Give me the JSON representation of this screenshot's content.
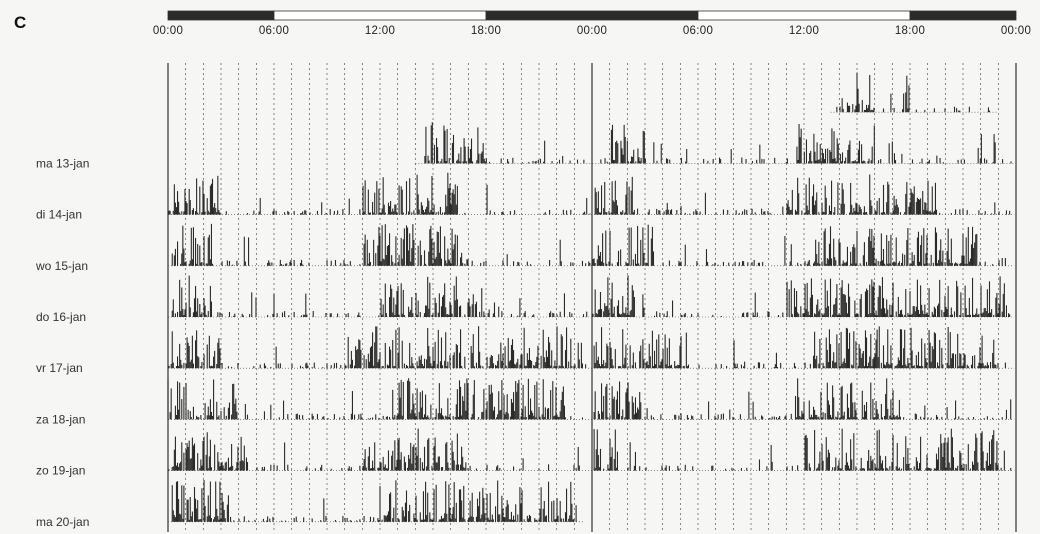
{
  "panel_label": "C",
  "chart_data": {
    "type": "bar",
    "title": "",
    "xlabel": "",
    "ylabel": "",
    "x_axis": {
      "range_hours": [
        0,
        48
      ],
      "tick_hours": [
        0,
        6,
        12,
        18,
        24,
        30,
        36,
        42,
        48
      ],
      "tick_labels": [
        "00:00",
        "06:00",
        "12:00",
        "18:00",
        "00:00",
        "06:00",
        "12:00",
        "18:00",
        "00:00"
      ],
      "minor_grid_step_hours": 1,
      "grid": "dotted"
    },
    "light_dark_bar": [
      {
        "start_hour": 0,
        "end_hour": 6,
        "state": "dark"
      },
      {
        "start_hour": 6,
        "end_hour": 18,
        "state": "light"
      },
      {
        "start_hour": 18,
        "end_hour": 30,
        "state": "dark"
      },
      {
        "start_hour": 30,
        "end_hour": 42,
        "state": "light"
      },
      {
        "start_hour": 42,
        "end_hour": 48,
        "state": "dark"
      }
    ],
    "rows": [
      {
        "label": "",
        "active_hours": [
          37.5,
          47.0
        ],
        "bursts": [
          [
            38.0,
            40.0
          ],
          [
            41.5,
            42.0
          ]
        ]
      },
      {
        "label": "ma 13-jan",
        "active_hours": [
          14.0,
          47.9
        ],
        "bursts": [
          [
            14.5,
            18.0
          ],
          [
            25.0,
            27.0
          ],
          [
            35.5,
            40.0
          ]
        ]
      },
      {
        "label": "di 14-jan",
        "active_hours": [
          0.0,
          47.9
        ],
        "bursts": [
          [
            0.2,
            3.0
          ],
          [
            11.0,
            16.5
          ],
          [
            24.0,
            26.5
          ],
          [
            35.0,
            43.5
          ]
        ]
      },
      {
        "label": "wo 15-jan",
        "active_hours": [
          0.0,
          47.9
        ],
        "bursts": [
          [
            0.2,
            2.5
          ],
          [
            11.0,
            17.0
          ],
          [
            24.0,
            27.5
          ],
          [
            36.5,
            46.0
          ]
        ]
      },
      {
        "label": "do 16-jan",
        "active_hours": [
          0.0,
          47.9
        ],
        "bursts": [
          [
            0.2,
            2.5
          ],
          [
            12.0,
            17.5
          ],
          [
            24.0,
            26.5
          ],
          [
            35.0,
            47.5
          ]
        ]
      },
      {
        "label": "vr 17-jan",
        "active_hours": [
          0.0,
          47.9
        ],
        "bursts": [
          [
            0.2,
            3.0
          ],
          [
            10.0,
            23.5
          ],
          [
            24.0,
            29.5
          ],
          [
            36.5,
            47.0
          ]
        ]
      },
      {
        "label": "za 18-jan",
        "active_hours": [
          0.0,
          47.9
        ],
        "bursts": [
          [
            0.0,
            4.0
          ],
          [
            12.5,
            22.5
          ],
          [
            24.0,
            27.0
          ],
          [
            35.5,
            41.5
          ]
        ]
      },
      {
        "label": "zo 19-jan",
        "active_hours": [
          0.0,
          47.9
        ],
        "bursts": [
          [
            0.2,
            4.5
          ],
          [
            11.0,
            17.0
          ],
          [
            24.0,
            25.5
          ],
          [
            36.0,
            47.0
          ]
        ]
      },
      {
        "label": "ma 20-jan",
        "active_hours": [
          0.0,
          23.5
        ],
        "bursts": [
          [
            0.2,
            3.5
          ],
          [
            12.0,
            23.0
          ]
        ]
      }
    ]
  }
}
